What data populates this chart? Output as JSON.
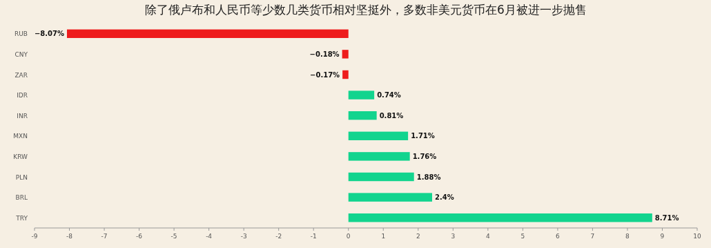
{
  "chart_data": {
    "type": "bar",
    "orientation": "horizontal",
    "title": "除了俄卢布和人民币等少数几类货币相对坚挺外，多数非美元货币在6月被进一步抛售",
    "categories": [
      "RUB",
      "CNY",
      "ZAR",
      "IDR",
      "INR",
      "MXN",
      "KRW",
      "PLN",
      "BRL",
      "TRY"
    ],
    "values": [
      -8.07,
      -0.18,
      -0.17,
      0.74,
      0.81,
      1.71,
      1.76,
      1.88,
      2.4,
      8.71
    ],
    "colors": [
      "#ee1c1c",
      "#ee1c1c",
      "#ee1c1c",
      "#12d48e",
      "#12d48e",
      "#12d48e",
      "#12d48e",
      "#12d48e",
      "#12d48e",
      "#12d48e"
    ],
    "value_labels": [
      "−8.07%",
      "−0.18%",
      "−0.17%",
      "0.74%",
      "0.81%",
      "1.71%",
      "1.76%",
      "1.88%",
      "2.4%",
      "8.71%"
    ],
    "xlim": [
      -9,
      10
    ],
    "xticks": [
      -9,
      -8,
      -7,
      -6,
      -5,
      -4,
      -3,
      -2,
      -1,
      0,
      1,
      2,
      3,
      4,
      5,
      6,
      7,
      8,
      9,
      10
    ],
    "grid": false
  }
}
